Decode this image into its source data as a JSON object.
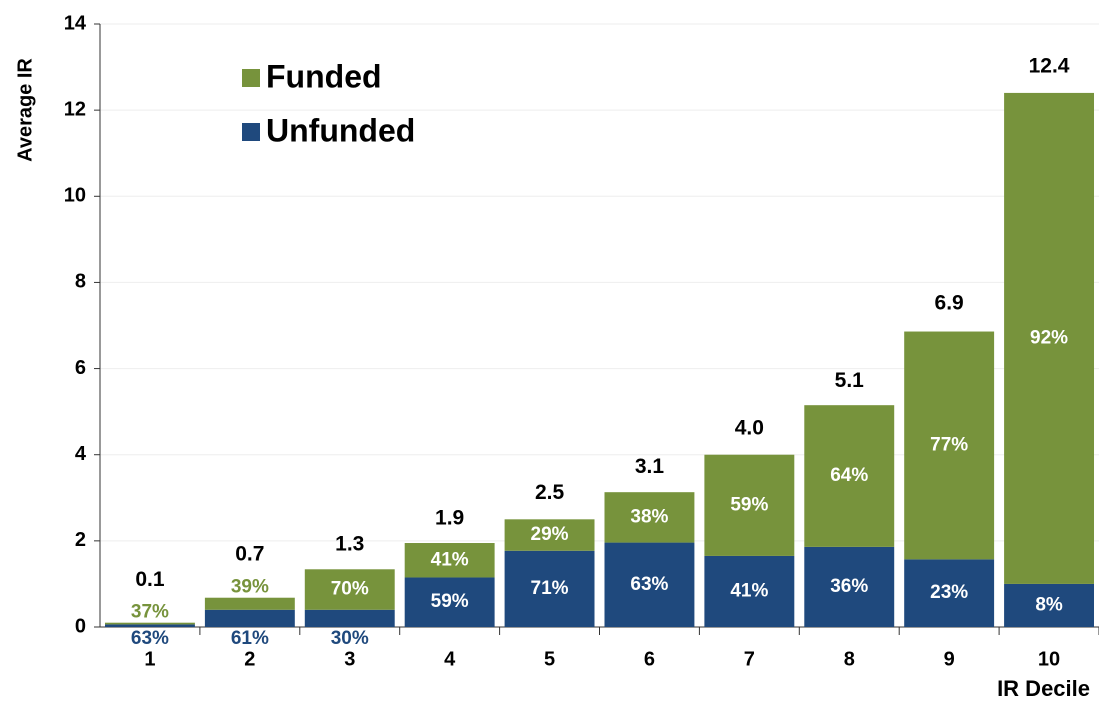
{
  "chart_data": {
    "type": "stacked_bar",
    "x_label": "IR Decile",
    "y_label": "Average IR",
    "categories": [
      "1",
      "2",
      "3",
      "4",
      "5",
      "6",
      "7",
      "8",
      "9",
      "10"
    ],
    "series": [
      {
        "name": "Unfunded",
        "color": "#1f497d",
        "values": [
          0.06,
          0.4,
          0.4,
          1.15,
          1.77,
          1.96,
          1.65,
          1.86,
          1.57,
          1.0
        ],
        "share_labels": [
          "63%",
          "61%",
          "30%",
          "59%",
          "71%",
          "63%",
          "41%",
          "36%",
          "23%",
          "8%"
        ]
      },
      {
        "name": "Funded",
        "color": "#77933c",
        "values": [
          0.04,
          0.28,
          0.94,
          0.8,
          0.73,
          1.17,
          2.35,
          3.29,
          5.29,
          11.4
        ],
        "share_labels": [
          "37%",
          "39%",
          "70%",
          "41%",
          "29%",
          "38%",
          "59%",
          "64%",
          "77%",
          "92%"
        ]
      }
    ],
    "totals": [
      0.1,
      0.7,
      1.3,
      1.9,
      2.5,
      3.1,
      4.0,
      5.1,
      6.9,
      12.4
    ],
    "total_labels": [
      "0.1",
      "0.7",
      "1.3",
      "1.9",
      "2.5",
      "3.1",
      "4.0",
      "5.1",
      "6.9",
      "12.4"
    ],
    "ylim": [
      0,
      14
    ],
    "yticks": [
      0,
      2,
      4,
      6,
      8,
      10,
      12,
      14
    ],
    "grid": true,
    "legend": "upper left"
  }
}
